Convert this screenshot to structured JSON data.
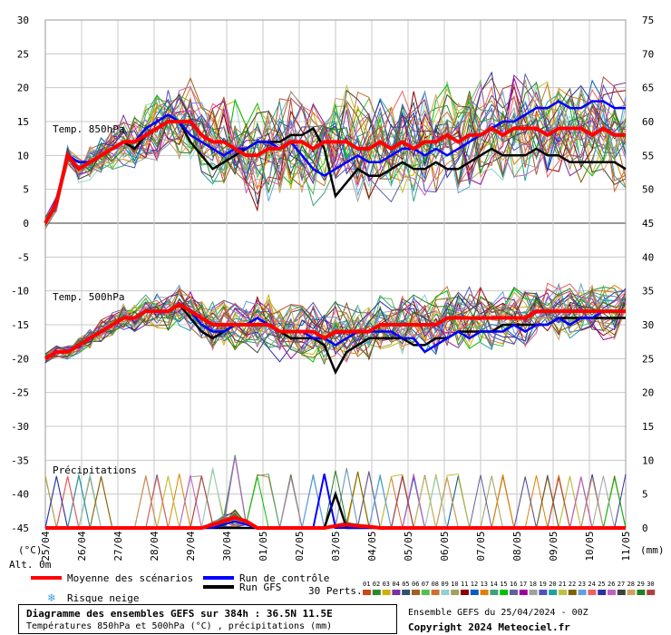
{
  "chart_data": {
    "type": "line",
    "x_dates": [
      "25/04",
      "26/04",
      "27/04",
      "28/04",
      "29/04",
      "30/04",
      "01/05",
      "02/05",
      "03/05",
      "04/05",
      "05/05",
      "06/05",
      "07/05",
      "08/05",
      "09/05",
      "10/05",
      "11/05"
    ],
    "left_axis_ticks": [
      30,
      25,
      20,
      15,
      10,
      5,
      0,
      -5,
      -10,
      -15,
      -20,
      -25,
      -30,
      -35,
      -40,
      -45
    ],
    "right_axis_ticks": [
      75,
      70,
      65,
      60,
      55,
      50,
      45,
      40,
      35,
      30,
      25,
      20,
      15,
      10,
      5,
      0
    ],
    "left_ylim": [
      -45,
      30
    ],
    "unit_left": "(°C)",
    "unit_right": "(mm)",
    "alt_label": "Alt. 0m",
    "panel_labels": {
      "t850": "Temp. 850hPa",
      "t500": "Temp. 500hPa",
      "precip": "Précipitations"
    },
    "t850_mean": [
      0,
      3,
      10,
      8,
      9,
      10,
      11,
      12,
      12,
      13,
      14,
      15,
      15,
      15,
      13,
      12,
      12,
      11,
      10,
      10,
      11,
      11,
      12,
      12,
      11,
      12,
      12,
      12,
      11,
      11,
      12,
      11,
      12,
      11,
      12,
      12,
      13,
      12,
      13,
      13,
      14,
      13,
      14,
      14,
      14,
      13,
      14,
      14,
      14,
      13,
      14,
      13,
      13
    ],
    "t850_control": [
      0,
      3,
      10,
      9,
      9,
      10,
      11,
      12,
      12,
      14,
      15,
      16,
      15,
      13,
      12,
      11,
      10,
      11,
      11,
      12,
      12,
      11,
      12,
      10,
      8,
      7,
      8,
      9,
      10,
      9,
      9,
      10,
      11,
      11,
      10,
      11,
      10,
      11,
      12,
      13,
      14,
      15,
      15,
      16,
      17,
      17,
      18,
      17,
      17,
      18,
      18,
      17,
      17
    ],
    "t850_gfs": [
      0,
      3,
      10,
      9,
      9,
      10,
      11,
      12,
      11,
      13,
      14,
      15,
      15,
      12,
      10,
      8,
      9,
      10,
      11,
      12,
      12,
      12,
      13,
      13,
      14,
      11,
      4,
      6,
      8,
      7,
      7,
      8,
      9,
      8,
      8,
      9,
      8,
      8,
      9,
      10,
      11,
      10,
      10,
      10,
      11,
      10,
      10,
      9,
      9,
      9,
      9,
      9,
      8
    ],
    "t500_mean": [
      -20,
      -19,
      -19,
      -18,
      -17,
      -16,
      -15,
      -14,
      -14,
      -13,
      -13,
      -13,
      -12,
      -13,
      -14,
      -15,
      -15,
      -15,
      -15,
      -15,
      -15,
      -16,
      -16,
      -16,
      -16,
      -17,
      -16,
      -16,
      -16,
      -16,
      -15,
      -15,
      -15,
      -15,
      -15,
      -15,
      -14,
      -14,
      -14,
      -14,
      -14,
      -14,
      -14,
      -14,
      -13,
      -13,
      -13,
      -13,
      -13,
      -13,
      -13,
      -13,
      -13
    ],
    "t500_control": [
      -20,
      -19,
      -19,
      -18,
      -17,
      -16,
      -15,
      -14,
      -14,
      -13,
      -13,
      -13,
      -12,
      -13,
      -15,
      -16,
      -16,
      -15,
      -15,
      -14,
      -15,
      -16,
      -16,
      -16,
      -17,
      -17,
      -18,
      -17,
      -16,
      -16,
      -16,
      -16,
      -17,
      -17,
      -19,
      -18,
      -17,
      -16,
      -17,
      -16,
      -16,
      -16,
      -15,
      -16,
      -15,
      -15,
      -14,
      -15,
      -14,
      -14,
      -13,
      -13,
      -13
    ],
    "t500_gfs": [
      -20,
      -19,
      -19,
      -18,
      -17,
      -16,
      -15,
      -14,
      -14,
      -13,
      -13,
      -13,
      -12,
      -14,
      -16,
      -17,
      -16,
      -15,
      -15,
      -15,
      -15,
      -16,
      -17,
      -17,
      -17,
      -18,
      -22,
      -19,
      -18,
      -17,
      -17,
      -17,
      -17,
      -18,
      -18,
      -17,
      -17,
      -16,
      -16,
      -16,
      -16,
      -15,
      -15,
      -15,
      -15,
      -15,
      -14,
      -14,
      -14,
      -14,
      -14,
      -14,
      -14
    ],
    "precip_mean": [
      0,
      0,
      0,
      0,
      0,
      0,
      0,
      0,
      0,
      0,
      0,
      0,
      0,
      0,
      0,
      0.5,
      1,
      1.5,
      1,
      0,
      0,
      0,
      0,
      0,
      0,
      0,
      0.3,
      0.5,
      0.3,
      0.2,
      0,
      0,
      0,
      0,
      0,
      0,
      0,
      0,
      0,
      0,
      0,
      0,
      0,
      0,
      0,
      0,
      0,
      0,
      0,
      0,
      0,
      0,
      0
    ],
    "precip_control": [
      0,
      0,
      0,
      0,
      0,
      0,
      0,
      0,
      0,
      0,
      0,
      0,
      0,
      0,
      0,
      0,
      0.5,
      1,
      0.5,
      0,
      0,
      0,
      0,
      0,
      0,
      8,
      0,
      0,
      0,
      0,
      0,
      0,
      0,
      0,
      0,
      0,
      0,
      0,
      0,
      0,
      0,
      0,
      0,
      0,
      0,
      0,
      0,
      0,
      0,
      0,
      0,
      0,
      0
    ],
    "precip_gfs": [
      0,
      0,
      0,
      0,
      0,
      0,
      0,
      0,
      0,
      0,
      0,
      0,
      0,
      0,
      0,
      0,
      0,
      0,
      0,
      0,
      0,
      0,
      0,
      0,
      0,
      0,
      5,
      0,
      0,
      0,
      0,
      0,
      0,
      0,
      0,
      0,
      0,
      0,
      0,
      0,
      0,
      0,
      0,
      0,
      0,
      0,
      0,
      0,
      0,
      0,
      0,
      0,
      0
    ],
    "ensemble_colors": [
      "#c84a1a",
      "#2a8a2a",
      "#d0b000",
      "#8030a0",
      "#305070",
      "#a06020",
      "#50c050",
      "#d07030",
      "#90d0d0",
      "#a0a060",
      "#8a0000",
      "#0060c0",
      "#e08000",
      "#40a080",
      "#00c000",
      "#6060a0",
      "#a000a0",
      "#a0a0a0",
      "#5050c0",
      "#20a0a0",
      "#c0c040",
      "#806000",
      "#60a0e0",
      "#f06060",
      "#3030a0",
      "#c060c0",
      "#404040",
      "#d0a060",
      "#208020",
      "#b04040"
    ]
  },
  "legend": {
    "mean": "Moyenne des scénarios",
    "control": "Run de contrôle",
    "gfs": "Run GFS",
    "snow": "Risque neige",
    "perts_label": "30 Perts.",
    "pert_numbers": [
      "01",
      "02",
      "03",
      "04",
      "05",
      "06",
      "07",
      "08",
      "09",
      "10",
      "11",
      "12",
      "13",
      "14",
      "15",
      "16",
      "17",
      "18",
      "19",
      "20",
      "21",
      "22",
      "23",
      "24",
      "25",
      "26",
      "27",
      "28",
      "29",
      "30"
    ],
    "mean_color": "#ff0000",
    "control_color": "#0000ff",
    "gfs_color": "#000000"
  },
  "footer": {
    "title": "Diagramme des ensembles GEFS sur 384h : 36.5N 11.5E",
    "subtitle": "Températures 850hPa et 500hPa (°C) , précipitations (mm)",
    "ensemble_run": "Ensemble GEFS du 25/04/2024 - 00Z",
    "copyright": "Copyright 2024 Meteociel.fr"
  }
}
